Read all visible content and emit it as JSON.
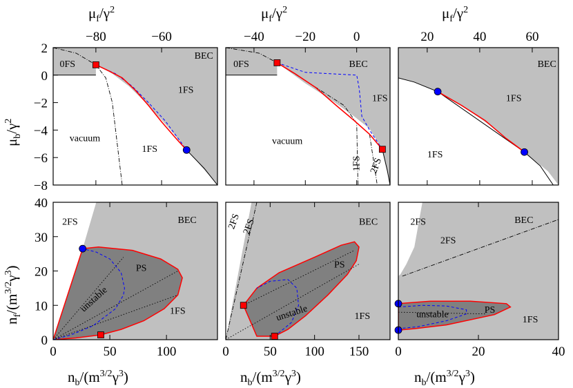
{
  "colors": {
    "light_region": "#c0c0c0",
    "dark_region": "#808080",
    "boundary_red": "#ff0000",
    "dashed_blue": "#0000ff",
    "square_marker": "#ff0000",
    "circle_marker": "#0000ff"
  },
  "axis_titles": {
    "top_x": [
      "μ",
      "f",
      "/γ",
      "2"
    ],
    "top_y": [
      "μ",
      "b",
      "/γ",
      "2"
    ],
    "bottom_x": [
      "n",
      "b",
      "/(m",
      "3/2",
      "γ",
      "3",
      ")"
    ],
    "bottom_y": [
      "n",
      "f",
      "/(m",
      "3/2",
      "γ",
      "3",
      ")"
    ]
  },
  "chart_data": [
    {
      "type": "line",
      "panel": "top-left",
      "xlabel": "μf/γ²",
      "ylabel": "μb/γ²",
      "x_ticks": [
        -80,
        -60
      ],
      "y_ticks": [
        2,
        0,
        -2,
        -4,
        -6,
        -8
      ],
      "xlim": [
        -93,
        -43
      ],
      "ylim": [
        -8,
        2
      ],
      "regions": [
        {
          "label": "0FS",
          "at": [
            -91,
            0.6
          ]
        },
        {
          "label": "BEC",
          "at": [
            -50,
            1.2
          ]
        },
        {
          "label": "1FS",
          "at": [
            -55,
            -1.3
          ]
        },
        {
          "label": "vacuum",
          "at": [
            -88,
            -4.8
          ]
        },
        {
          "label": "1FS",
          "at": [
            -66,
            -5.6
          ]
        }
      ],
      "shaded_light": [
        [
          -93,
          2
        ],
        [
          -43,
          2
        ],
        [
          -43,
          -8
        ],
        [
          -52,
          -5.5
        ],
        [
          -58,
          -3.8
        ],
        [
          -64,
          -2.2
        ],
        [
          -70,
          -0.8
        ],
        [
          -75,
          0.1
        ],
        [
          -80,
          0.75
        ],
        [
          -86,
          1.6
        ],
        [
          -93,
          2
        ]
      ],
      "shaded_light_extra": [
        [
          -93,
          0
        ],
        [
          -80,
          0
        ],
        [
          -80,
          0.75
        ],
        [
          -86,
          1.6
        ],
        [
          -93,
          2
        ]
      ],
      "red_boundary": [
        [
          -80,
          0.75
        ],
        [
          -76,
          0.3
        ],
        [
          -72,
          -0.2
        ],
        [
          -68,
          -1.1
        ],
        [
          -64,
          -2.2
        ],
        [
          -60,
          -3.4
        ],
        [
          -56,
          -4.5
        ],
        [
          -52.4,
          -5.45
        ]
      ],
      "blue_dashed": [
        [
          -80,
          0.75
        ],
        [
          -74,
          0.1
        ],
        [
          -69,
          -0.8
        ],
        [
          -64,
          -2.0
        ],
        [
          -59,
          -3.3
        ],
        [
          -55,
          -4.6
        ],
        [
          -52.4,
          -5.45
        ]
      ],
      "black_dashdot": [
        [
          -93,
          2
        ],
        [
          -86,
          1.6
        ],
        [
          -80,
          0.75
        ],
        [
          -77,
          -0.2
        ],
        [
          -75,
          -2.0
        ],
        [
          -73.5,
          -5.0
        ],
        [
          -72,
          -8
        ]
      ],
      "black_thin": [
        [
          -52.4,
          -5.45
        ],
        [
          -47,
          -6.8
        ],
        [
          -43,
          -8
        ]
      ],
      "squares": [
        [
          -80,
          0.75
        ]
      ],
      "circles": [
        [
          -52.4,
          -5.45
        ]
      ]
    },
    {
      "type": "line",
      "panel": "top-middle",
      "xlabel": "μf/γ²",
      "ylabel": "",
      "x_ticks": [
        -40,
        -20,
        0
      ],
      "y_ticks": [],
      "xlim": [
        -51,
        13
      ],
      "ylim": [
        -8,
        2
      ],
      "regions": [
        {
          "label": "0FS",
          "at": [
            -48,
            0.6
          ]
        },
        {
          "label": "BEC",
          "at": [
            -3,
            0.6
          ]
        },
        {
          "label": "1FS",
          "at": [
            6,
            -1.9
          ]
        },
        {
          "label": "vacuum",
          "at": [
            -33,
            -5
          ]
        },
        {
          "label": "1FS",
          "at": [
            1,
            -7
          ]
        },
        {
          "label": "2FS",
          "at": [
            7.5,
            -7.2
          ]
        }
      ],
      "shaded_light": [
        [
          -51,
          2
        ],
        [
          13,
          2
        ],
        [
          13,
          -8
        ],
        [
          10,
          -5.4
        ],
        [
          5,
          -3.9
        ],
        [
          -1,
          -3.0
        ],
        [
          -10,
          -1.8
        ],
        [
          -20,
          -0.6
        ],
        [
          -31,
          0.9
        ],
        [
          -38,
          1.6
        ],
        [
          -51,
          2
        ]
      ],
      "shaded_light_extra": [
        [
          -51,
          0
        ],
        [
          -31,
          0
        ],
        [
          -31,
          0.9
        ],
        [
          -38,
          1.6
        ],
        [
          -51,
          2
        ]
      ],
      "red_boundary": [
        [
          -31,
          0.9
        ],
        [
          -24,
          0.1
        ],
        [
          -16,
          -0.9
        ],
        [
          -8,
          -2.2
        ],
        [
          -1,
          -3.3
        ],
        [
          5,
          -4.3
        ],
        [
          10,
          -5.4
        ]
      ],
      "blue_dashed": [
        [
          -31,
          0.9
        ],
        [
          -20,
          0.2
        ],
        [
          0,
          0
        ],
        [
          1,
          -1.0
        ],
        [
          2,
          -3.0
        ],
        [
          5,
          -4.0
        ],
        [
          10,
          -5.4
        ]
      ],
      "black_dashdot": [
        [
          -51,
          2
        ],
        [
          -38,
          1.6
        ],
        [
          -31,
          0.9
        ],
        [
          -20,
          -0.4
        ],
        [
          -5,
          -2.2
        ],
        [
          0,
          -3.5
        ],
        [
          0.5,
          -8
        ]
      ],
      "black_thin": [
        [
          10,
          -5.4
        ],
        [
          12,
          -7
        ],
        [
          13,
          -8
        ]
      ],
      "black_dashdot_2": [
        [
          5,
          -4.3
        ],
        [
          8,
          -8
        ]
      ],
      "squares": [
        [
          -31,
          0.9
        ],
        [
          10,
          -5.4
        ]
      ],
      "circles": []
    },
    {
      "type": "line",
      "panel": "top-right",
      "xlabel": "μf/γ²",
      "ylabel": "",
      "x_ticks": [
        20,
        40,
        60
      ],
      "y_ticks": [],
      "xlim": [
        9,
        70
      ],
      "ylim": [
        -8,
        2
      ],
      "regions": [
        {
          "label": "BEC",
          "at": [
            62,
            0.6
          ]
        },
        {
          "label": "1FS",
          "at": [
            50,
            -1.9
          ]
        },
        {
          "label": "1FS",
          "at": [
            20,
            -6
          ]
        }
      ],
      "shaded_light": [
        [
          9,
          2
        ],
        [
          70,
          2
        ],
        [
          70,
          -8
        ],
        [
          66,
          -7
        ],
        [
          57,
          -5.6
        ],
        [
          45,
          -3.8
        ],
        [
          33,
          -2.2
        ],
        [
          24,
          -1.2
        ],
        [
          15,
          -0.5
        ],
        [
          9,
          -0.2
        ]
      ],
      "shaded_light_extra": [],
      "red_boundary": [
        [
          24,
          -1.2
        ],
        [
          33,
          -2.2
        ],
        [
          42,
          -3.3
        ],
        [
          50,
          -4.6
        ],
        [
          57,
          -5.6
        ]
      ],
      "blue_dashed": [],
      "black_dashdot": [],
      "black_thin": [
        [
          9,
          -0.2
        ],
        [
          15,
          -0.5
        ],
        [
          24,
          -1.2
        ],
        [
          57,
          -5.6
        ],
        [
          63,
          -6.6
        ],
        [
          68,
          -8
        ]
      ],
      "squares": [],
      "circles": [
        [
          24,
          -1.2
        ],
        [
          57,
          -5.6
        ]
      ]
    },
    {
      "type": "area",
      "panel": "bottom-left",
      "xlabel": "nb/(m^{3/2}γ³)",
      "ylabel": "nf/(m^{3/2}γ³)",
      "x_ticks": [
        0,
        50,
        100
      ],
      "y_ticks": [
        0,
        10,
        20,
        30,
        40
      ],
      "xlim": [
        0,
        145
      ],
      "ylim": [
        0,
        40
      ],
      "regions": [
        {
          "label": "2FS",
          "at": [
            8,
            33.5
          ]
        },
        {
          "label": "BEC",
          "at": [
            110,
            34
          ]
        },
        {
          "label": "PS",
          "at": [
            73,
            20
          ]
        },
        {
          "label": "unstable",
          "at": [
            27,
            8
          ]
        },
        {
          "label": "1FS",
          "at": [
            103,
            7.5
          ]
        }
      ],
      "shaded_light": [
        [
          0,
          0
        ],
        [
          145,
          0
        ],
        [
          145,
          40
        ],
        [
          38,
          40
        ],
        [
          26,
          26.5
        ],
        [
          0,
          0
        ]
      ],
      "ps_region": [
        [
          0,
          0
        ],
        [
          26,
          26.5
        ],
        [
          40,
          27
        ],
        [
          70,
          26
        ],
        [
          95,
          23.5
        ],
        [
          110,
          20.5
        ],
        [
          114,
          18
        ],
        [
          110,
          13
        ],
        [
          98,
          9
        ],
        [
          80,
          5.5
        ],
        [
          60,
          3
        ],
        [
          42,
          1.4
        ],
        [
          20,
          0.5
        ],
        [
          0,
          0
        ]
      ],
      "unstable_dashed": [
        [
          0,
          0
        ],
        [
          15,
          1.3
        ],
        [
          35,
          4
        ],
        [
          55,
          9
        ],
        [
          62,
          13
        ],
        [
          63,
          15
        ],
        [
          60,
          19.5
        ],
        [
          50,
          23.5
        ],
        [
          38,
          25.5
        ],
        [
          26,
          26.5
        ]
      ],
      "dotted_lines": [
        [
          [
            0,
            0
          ],
          [
            62,
            24
          ]
        ],
        [
          [
            0,
            0
          ],
          [
            110,
            20
          ]
        ],
        [
          [
            0,
            0
          ],
          [
            110,
            13
          ]
        ]
      ],
      "squares": [
        [
          42,
          1.4
        ]
      ],
      "circles": [
        [
          26,
          26.5
        ]
      ]
    },
    {
      "type": "area",
      "panel": "bottom-middle",
      "xlabel": "nb/(m^{3/2}γ³)",
      "ylabel": "",
      "x_ticks": [
        0,
        50,
        100,
        150
      ],
      "y_ticks": [],
      "xlim": [
        0,
        185
      ],
      "ylim": [
        0,
        40
      ],
      "regions": [
        {
          "label": "2FS",
          "at": [
            9,
            32
          ]
        },
        {
          "label": "2FS",
          "at": [
            26,
            30.5
          ]
        },
        {
          "label": "BEC",
          "at": [
            150,
            33.5
          ]
        },
        {
          "label": "PS",
          "at": [
            122,
            21
          ]
        },
        {
          "label": "unstable",
          "at": [
            58,
            5.5
          ]
        },
        {
          "label": "1FS",
          "at": [
            145,
            6
          ]
        }
      ],
      "shaded_light": [
        [
          0,
          0
        ],
        [
          185,
          0
        ],
        [
          185,
          40
        ],
        [
          29,
          40
        ],
        [
          0,
          0
        ]
      ],
      "white_wedge": [
        [
          0,
          0
        ],
        [
          20,
          40
        ],
        [
          29,
          40
        ],
        [
          0,
          0
        ]
      ],
      "ps_region": [
        [
          20,
          10
        ],
        [
          35,
          15
        ],
        [
          60,
          19.5
        ],
        [
          100,
          24
        ],
        [
          130,
          27.5
        ],
        [
          145,
          28.5
        ],
        [
          150,
          27
        ],
        [
          147,
          23
        ],
        [
          137,
          19
        ],
        [
          115,
          13
        ],
        [
          90,
          7
        ],
        [
          70,
          3
        ],
        [
          55,
          1
        ],
        [
          35,
          1
        ],
        [
          20,
          10
        ]
      ],
      "unstable_dashed": [
        [
          55,
          1
        ],
        [
          74,
          5
        ],
        [
          82,
          10
        ],
        [
          80,
          15
        ],
        [
          70,
          17.5
        ],
        [
          50,
          17
        ],
        [
          35,
          15
        ]
      ],
      "dotted_lines": [
        [
          [
            20,
            10
          ],
          [
            145,
            26
          ]
        ],
        [
          [
            0,
            0
          ],
          [
            150,
            22
          ]
        ]
      ],
      "dashdot_lines": [
        [
          [
            0,
            0
          ],
          [
            35,
            40
          ]
        ]
      ],
      "squares": [
        [
          20,
          10
        ],
        [
          55,
          1
        ]
      ],
      "circles": []
    },
    {
      "type": "area",
      "panel": "bottom-right",
      "xlabel": "nb/(m^{3/2}γ³)",
      "ylabel": "",
      "x_ticks": [
        0,
        20,
        40
      ],
      "y_ticks": [],
      "xlim": [
        0,
        40
      ],
      "ylim": [
        0,
        40
      ],
      "regions": [
        {
          "label": "2FS",
          "at": [
            3,
            33.5
          ]
        },
        {
          "label": "BEC",
          "at": [
            29,
            34
          ]
        },
        {
          "label": "2FS",
          "at": [
            10.5,
            28
          ]
        },
        {
          "label": "PS",
          "at": [
            21.5,
            7.8
          ]
        },
        {
          "label": "unstable",
          "at": [
            4.5,
            6.5
          ]
        },
        {
          "label": "1FS",
          "at": [
            31,
            5
          ]
        }
      ],
      "shaded_light": [
        [
          0,
          0
        ],
        [
          40,
          0
        ],
        [
          40,
          40
        ],
        [
          6,
          40
        ],
        [
          4,
          27
        ],
        [
          2,
          22
        ],
        [
          0.5,
          19
        ],
        [
          0,
          18.5
        ],
        [
          0,
          0
        ]
      ],
      "ps_region": [
        [
          0,
          10.5
        ],
        [
          8,
          11.2
        ],
        [
          18,
          11.2
        ],
        [
          27,
          10.5
        ],
        [
          28,
          9.5
        ],
        [
          24,
          7.3
        ],
        [
          12,
          4.3
        ],
        [
          4,
          3.2
        ],
        [
          0,
          2.8
        ],
        [
          0,
          10.5
        ]
      ],
      "unstable_dashed": [
        [
          0,
          9.5
        ],
        [
          6,
          10
        ],
        [
          12,
          9.8
        ],
        [
          17,
          8.7
        ],
        [
          17,
          7.5
        ],
        [
          12,
          5.5
        ],
        [
          5,
          3.8
        ],
        [
          0,
          3.2
        ]
      ],
      "dashdot_lines": [
        [
          [
            1,
            18.5
          ],
          [
            40,
            35
          ]
        ]
      ],
      "dotted_lines": [
        [
          [
            0,
            8
          ],
          [
            22,
            7.5
          ]
        ]
      ],
      "squares": [],
      "circles": [
        [
          0,
          10.5
        ],
        [
          0,
          2.8
        ]
      ]
    }
  ]
}
